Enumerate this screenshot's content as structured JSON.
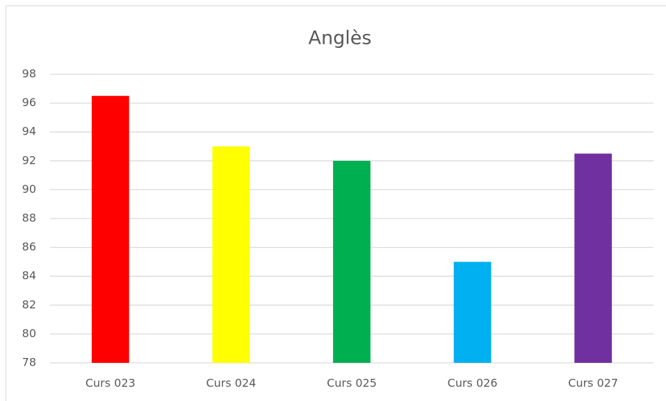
{
  "chart_data": {
    "type": "bar",
    "title": "Anglès",
    "categories": [
      "Curs 023",
      "Curs 024",
      "Curs 025",
      "Curs 026",
      "Curs 027"
    ],
    "values": [
      96.5,
      93,
      92,
      85,
      92.5
    ],
    "colors": [
      "#ff0000",
      "#ffff00",
      "#00b050",
      "#00b0f0",
      "#7030a0"
    ],
    "ylim": [
      78,
      98
    ],
    "yticks": [
      78,
      80,
      82,
      84,
      86,
      88,
      90,
      92,
      94,
      96,
      98
    ],
    "grid": true
  }
}
